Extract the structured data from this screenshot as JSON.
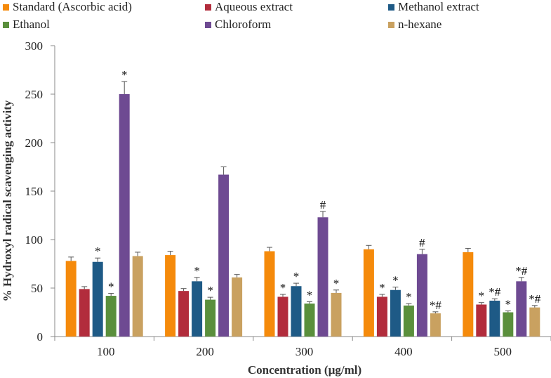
{
  "chart_data": {
    "type": "bar",
    "xlabel": "Concentration (µg/ml)",
    "ylabel": "% Hydroxyl radical scavenging activity",
    "ylim": [
      0,
      300
    ],
    "yticks": [
      0,
      50,
      100,
      150,
      200,
      250,
      300
    ],
    "grid": false,
    "legend_position": "top",
    "categories": [
      "100",
      "200",
      "300",
      "400",
      "500"
    ],
    "series": [
      {
        "name": "Standard (Ascorbic acid)",
        "color": "#f58a0b",
        "values": [
          78,
          84,
          88,
          90,
          87
        ],
        "errors": [
          4,
          4,
          4,
          4,
          4
        ]
      },
      {
        "name": "Aqueous extract",
        "color": "#b22c3c",
        "values": [
          49,
          47,
          41,
          41,
          33
        ],
        "errors": [
          2.5,
          2.5,
          2.5,
          2.5,
          2
        ]
      },
      {
        "name": "Methanol extract",
        "color": "#1e5a86",
        "values": [
          77,
          57,
          52,
          48,
          37
        ],
        "errors": [
          4,
          4,
          3,
          3,
          2
        ]
      },
      {
        "name": "Ethanol",
        "color": "#5a8f3c",
        "values": [
          42,
          38,
          34,
          32,
          25
        ],
        "errors": [
          2.5,
          2.5,
          2,
          2,
          1.5
        ]
      },
      {
        "name": "Chloroform",
        "color": "#6e4a92",
        "values": [
          250,
          167,
          123,
          85,
          57
        ],
        "errors": [
          13,
          8,
          6,
          5,
          4
        ]
      },
      {
        "name": "n-hexane",
        "color": "#c9a160",
        "values": [
          83,
          61,
          45,
          24,
          30
        ],
        "errors": [
          4,
          3,
          3,
          1.5,
          2
        ]
      }
    ],
    "annotations": [
      {
        "category": "100",
        "series": "Methanol extract",
        "text": "*"
      },
      {
        "category": "100",
        "series": "Ethanol",
        "text": "*"
      },
      {
        "category": "100",
        "series": "Chloroform",
        "text": "*"
      },
      {
        "category": "200",
        "series": "Methanol extract",
        "text": "*"
      },
      {
        "category": "200",
        "series": "Ethanol",
        "text": "*"
      },
      {
        "category": "300",
        "series": "Aqueous extract",
        "text": "*"
      },
      {
        "category": "300",
        "series": "Methanol extract",
        "text": "*"
      },
      {
        "category": "300",
        "series": "Ethanol",
        "text": "*"
      },
      {
        "category": "300",
        "series": "Chloroform",
        "text": "#"
      },
      {
        "category": "300",
        "series": "n-hexane",
        "text": "*"
      },
      {
        "category": "400",
        "series": "Aqueous extract",
        "text": "*"
      },
      {
        "category": "400",
        "series": "Methanol extract",
        "text": "*"
      },
      {
        "category": "400",
        "series": "Ethanol",
        "text": "*"
      },
      {
        "category": "400",
        "series": "Chloroform",
        "text": "#"
      },
      {
        "category": "400",
        "series": "n-hexane",
        "text": "*#"
      },
      {
        "category": "500",
        "series": "Aqueous extract",
        "text": "*"
      },
      {
        "category": "500",
        "series": "Methanol extract",
        "text": "*#"
      },
      {
        "category": "500",
        "series": "Ethanol",
        "text": "*"
      },
      {
        "category": "500",
        "series": "Chloroform",
        "text": "*#"
      },
      {
        "category": "500",
        "series": "n-hexane",
        "text": "*#"
      }
    ]
  }
}
